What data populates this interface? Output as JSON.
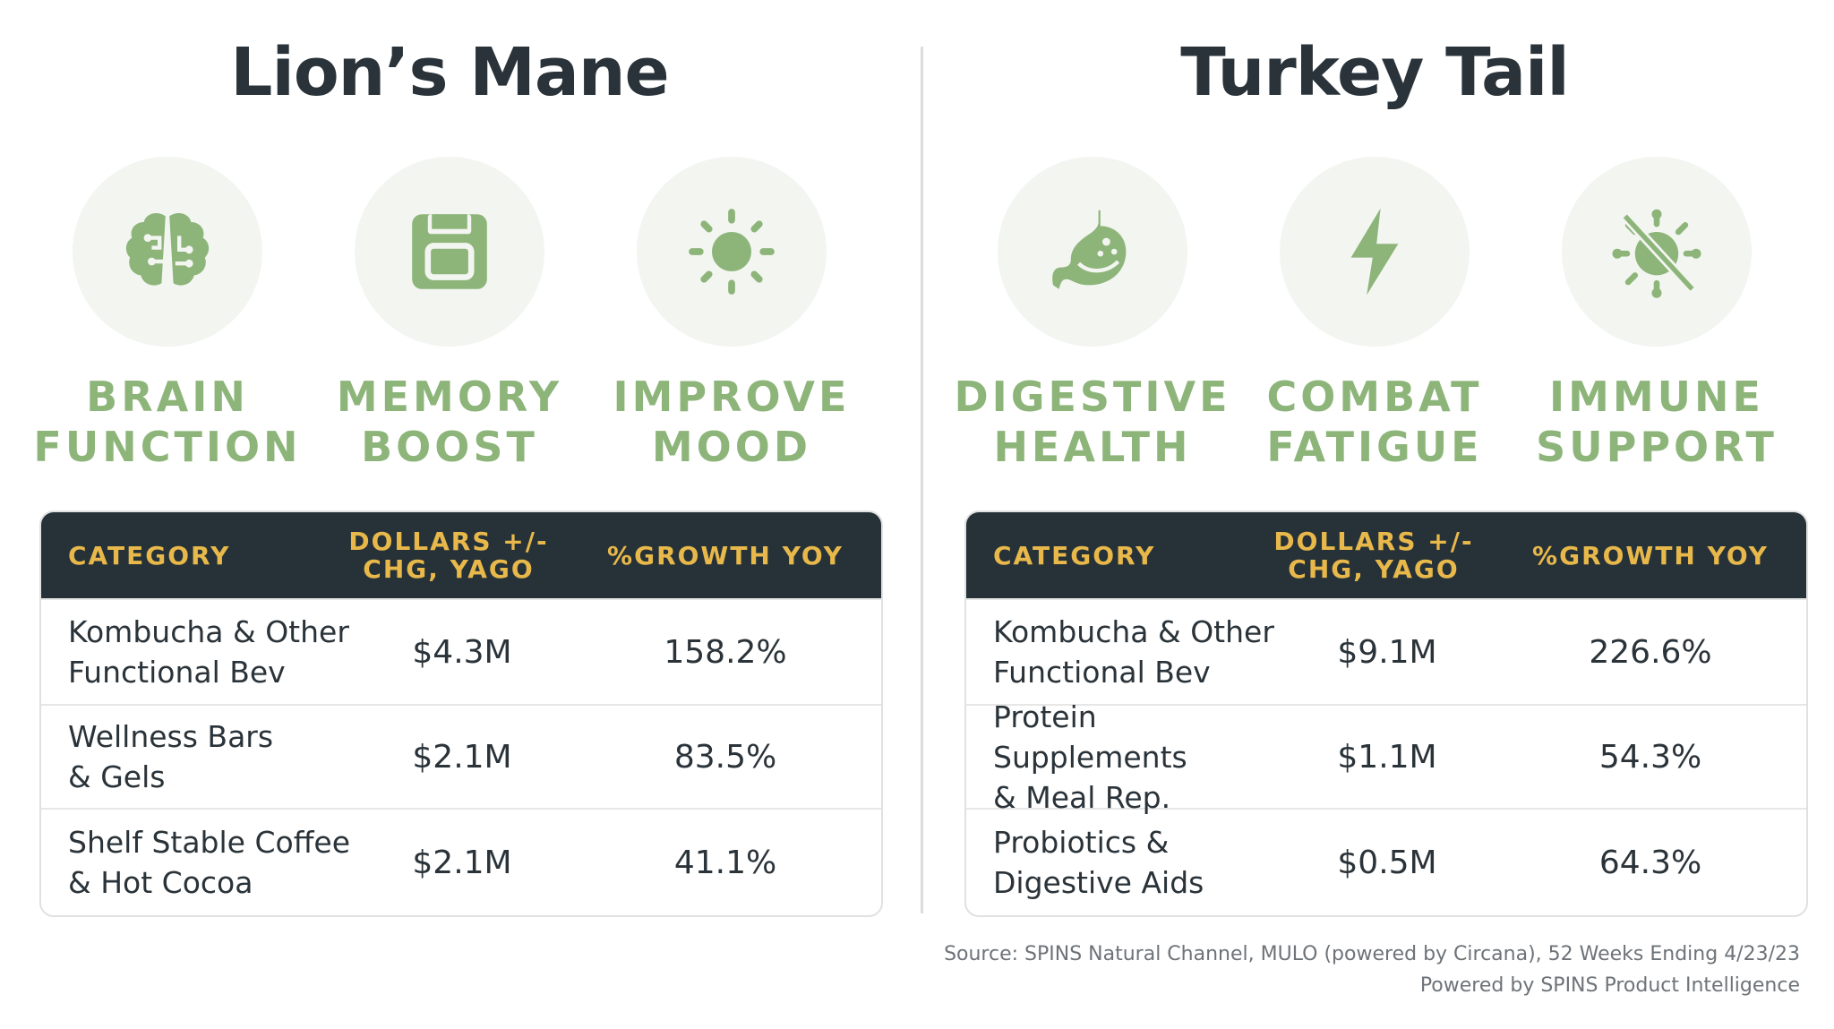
{
  "left": {
    "title": "Lion’s Mane",
    "benefits": [
      {
        "icon": "brain-icon",
        "label": "BRAIN\nFUNCTION"
      },
      {
        "icon": "floppy-disk-icon",
        "label": "MEMORY\nBOOST"
      },
      {
        "icon": "sun-icon",
        "label": "IMPROVE\nMOOD"
      }
    ],
    "table": {
      "headers": [
        "CATEGORY",
        "DOLLARS +/-\nCHG, YAGO",
        "%GROWTH YOY"
      ],
      "rows": [
        {
          "category": "Kombucha & Other\nFunctional Bev",
          "dollars": "$4.3M",
          "growth": "158.2%"
        },
        {
          "category": "Wellness Bars\n& Gels",
          "dollars": "$2.1M",
          "growth": "83.5%"
        },
        {
          "category": "Shelf Stable Coffee\n& Hot Cocoa",
          "dollars": "$2.1M",
          "growth": "41.1%"
        }
      ]
    }
  },
  "right": {
    "title": "Turkey Tail",
    "benefits": [
      {
        "icon": "stomach-icon",
        "label": "DIGESTIVE\nHEALTH"
      },
      {
        "icon": "lightning-icon",
        "label": "COMBAT\nFATIGUE"
      },
      {
        "icon": "virus-crossed-icon",
        "label": "IMMUNE\nSUPPORT"
      }
    ],
    "table": {
      "headers": [
        "CATEGORY",
        "DOLLARS +/-\nCHG, YAGO",
        "%GROWTH YOY"
      ],
      "rows": [
        {
          "category": "Kombucha & Other\nFunctional Bev",
          "dollars": "$9.1M",
          "growth": "226.6%"
        },
        {
          "category": "Protein Supplements\n& Meal Rep.",
          "dollars": "$1.1M",
          "growth": "54.3%"
        },
        {
          "category": "Probiotics &\nDigestive Aids",
          "dollars": "$0.5M",
          "growth": "64.3%"
        }
      ]
    }
  },
  "footer": {
    "source": "Source: SPINS Natural Channel, MULO (powered by Circana), 52 Weeks Ending 4/23/23",
    "powered": "Powered by SPINS Product Intelligence"
  },
  "colors": {
    "accent_green": "#8db57a",
    "header_dark": "#263238",
    "header_gold": "#e8b84a",
    "circle_bg": "#f3f5f1"
  }
}
